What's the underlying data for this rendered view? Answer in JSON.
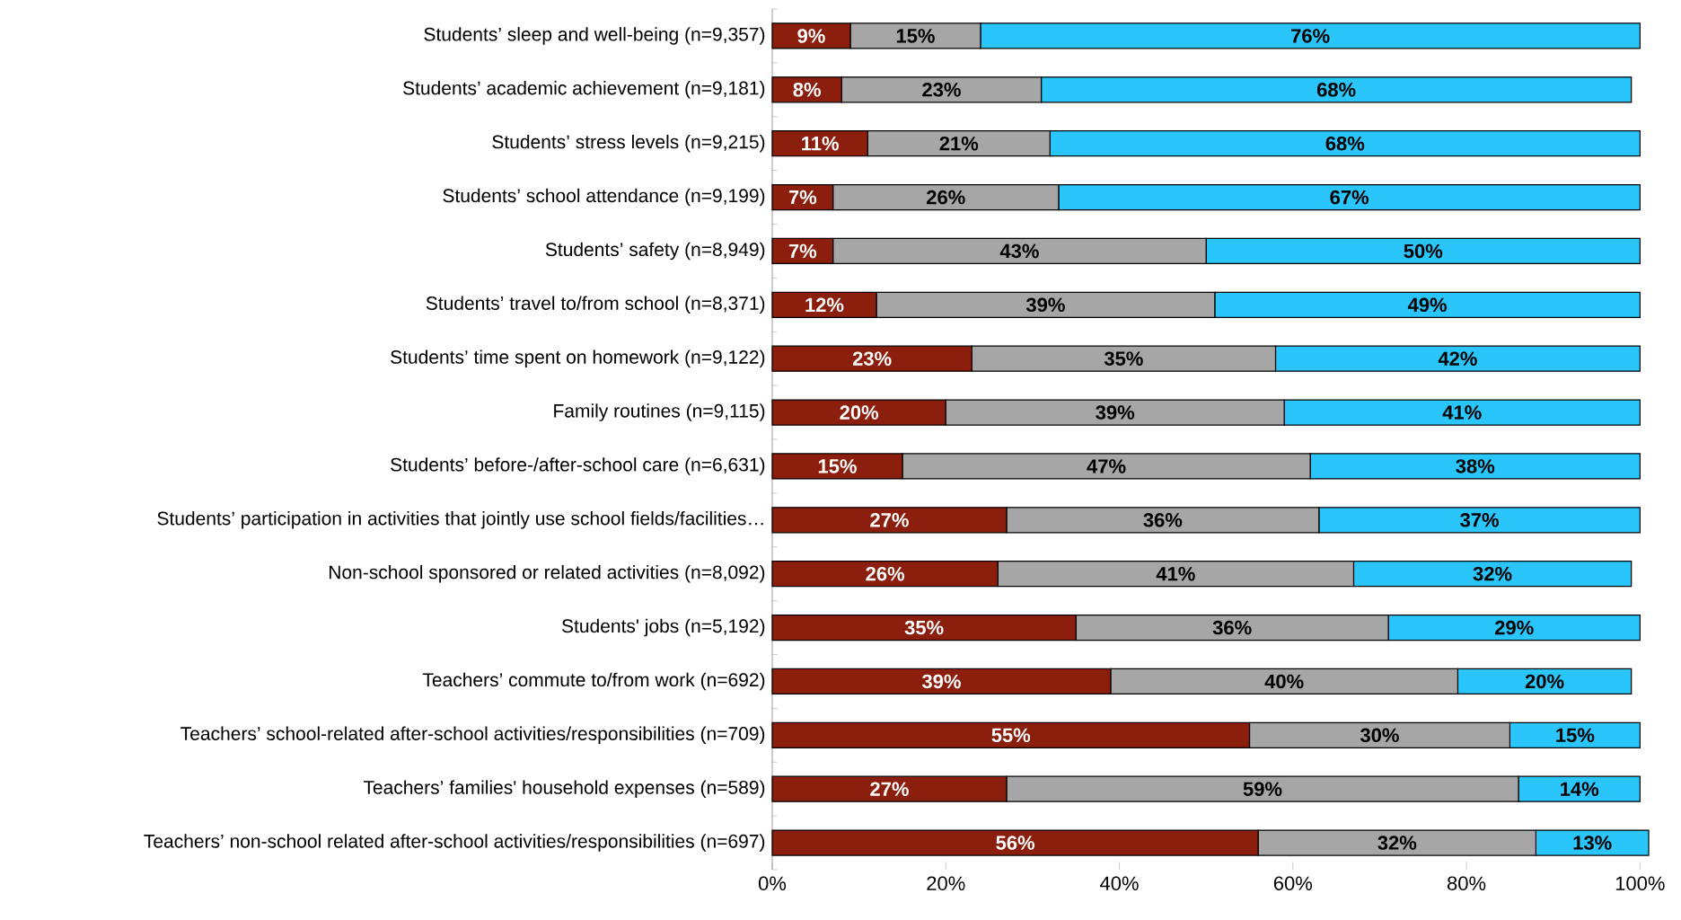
{
  "chart_data": {
    "type": "bar",
    "orientation": "horizontal",
    "stacked": true,
    "categories": [
      "Students’ sleep and well-being (n=9,357)",
      "Students’ academic achievement (n=9,181)",
      "Students’ stress levels (n=9,215)",
      "Students’ school attendance (n=9,199)",
      "Students’ safety (n=8,949)",
      "Students’ travel to/from school (n=8,371)",
      "Students’ time spent on homework (n=9,122)",
      "Family routines (n=9,115)",
      "Students’ before-/after-school care (n=6,631)",
      "Students’ participation in activities that jointly use school fields/facilities…",
      "Non-school sponsored or related activities (n=8,092)",
      "Students' jobs (n=5,192)",
      "Teachers’ commute to/from work (n=692)",
      "Teachers’ school-related after-school activities/responsibilities (n=709)",
      "Teachers’ families' household expenses (n=589)",
      "Teachers’ non-school related after-school activities/responsibilities (n=697)"
    ],
    "series": [
      {
        "color": "#8b1e0c",
        "values": [
          9,
          8,
          11,
          7,
          7,
          12,
          23,
          20,
          15,
          27,
          26,
          35,
          39,
          55,
          27,
          56
        ],
        "value_labels": [
          "9%",
          "8%",
          "11%",
          "7%",
          "7%",
          "12%",
          "23%",
          "20%",
          "15%",
          "27%",
          "26%",
          "35%",
          "39%",
          "55%",
          "27%",
          "56%"
        ]
      },
      {
        "color": "#a6a6a6",
        "values": [
          15,
          23,
          21,
          26,
          43,
          39,
          35,
          39,
          47,
          36,
          41,
          36,
          40,
          30,
          59,
          32
        ],
        "value_labels": [
          "15%",
          "23%",
          "21%",
          "26%",
          "43%",
          "39%",
          "35%",
          "39%",
          "47%",
          "36%",
          "41%",
          "36%",
          "40%",
          "30%",
          "59%",
          "32%"
        ]
      },
      {
        "color": "#29c5fb",
        "values": [
          76,
          68,
          68,
          67,
          50,
          49,
          42,
          41,
          38,
          37,
          32,
          29,
          20,
          15,
          14,
          13
        ],
        "value_labels": [
          "76%",
          "68%",
          "68%",
          "67%",
          "50%",
          "49%",
          "42%",
          "41%",
          "38%",
          "37%",
          "32%",
          "29%",
          "20%",
          "15%",
          "14%",
          "13%"
        ]
      }
    ],
    "xlim": [
      0,
      101
    ],
    "xticks": [
      {
        "value": 0,
        "label": "0%"
      },
      {
        "value": 20,
        "label": "20%"
      },
      {
        "value": 40,
        "label": "40%"
      },
      {
        "value": 60,
        "label": "60%"
      },
      {
        "value": 80,
        "label": "80%"
      },
      {
        "value": 100,
        "label": "100%"
      }
    ],
    "grid": false
  }
}
